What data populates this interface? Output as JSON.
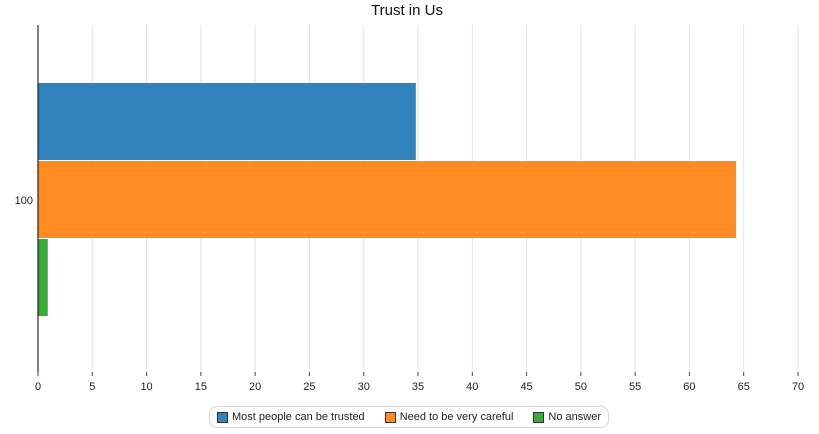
{
  "chart_data": {
    "type": "bar",
    "orientation": "horizontal",
    "title": "Trust in Us",
    "categories": [
      "100"
    ],
    "series": [
      {
        "name": "Most people can be trusted",
        "values": [
          34.8
        ],
        "color": "#3182bd"
      },
      {
        "name": "Need to be very careful",
        "values": [
          64.3
        ],
        "color": "#ff8c23"
      },
      {
        "name": "No answer",
        "values": [
          0.9
        ],
        "color": "#3aab3a"
      }
    ],
    "xlim": [
      0,
      70
    ],
    "xticks": [
      "0",
      "5",
      "10",
      "15",
      "20",
      "25",
      "30",
      "35",
      "40",
      "45",
      "50",
      "55",
      "60",
      "65",
      "70"
    ],
    "grid": true,
    "legend_position": "bottom"
  }
}
